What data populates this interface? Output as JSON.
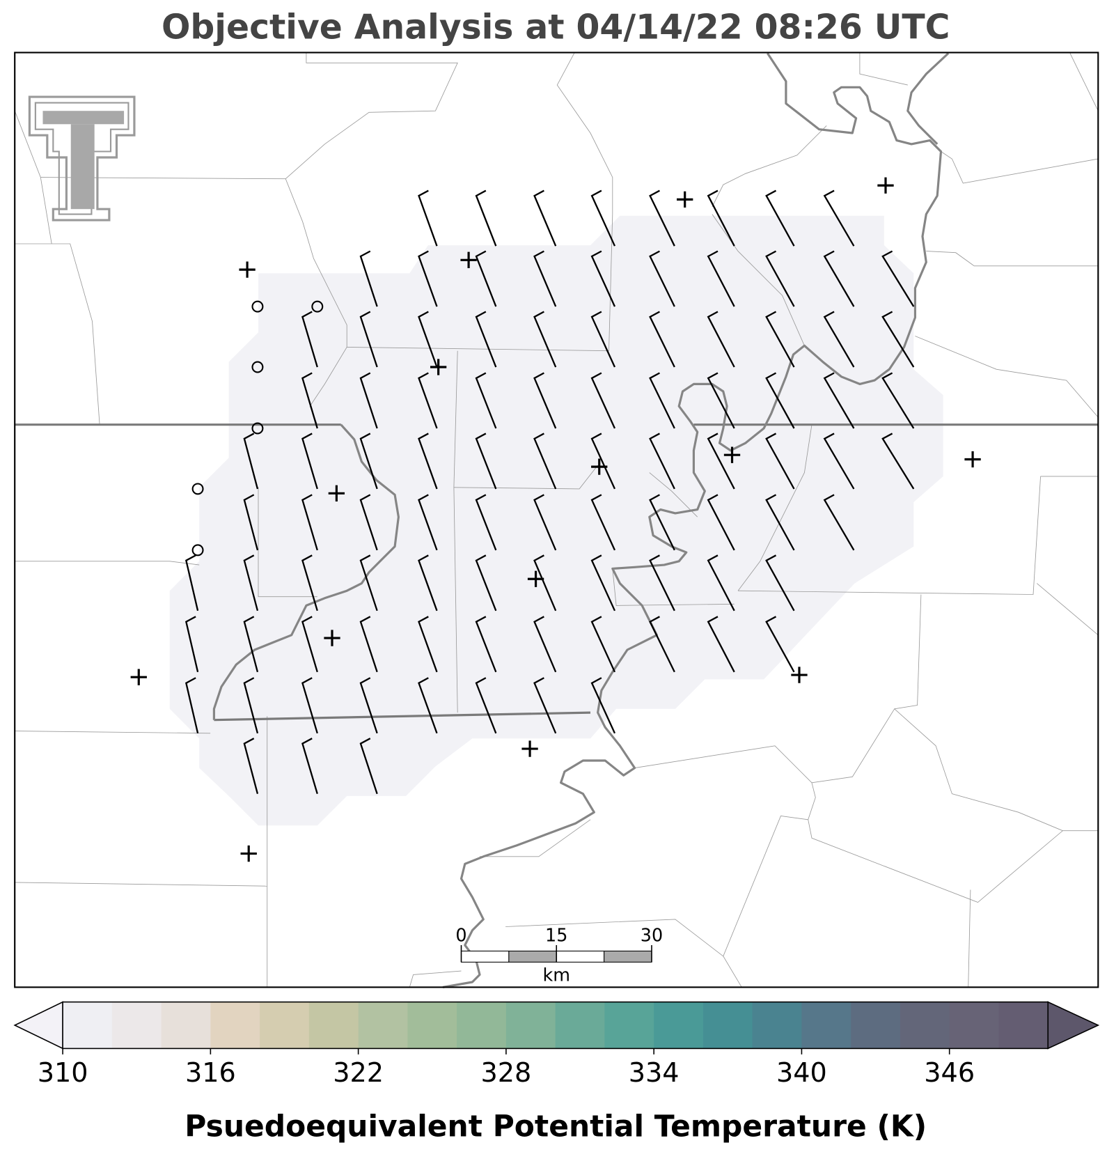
{
  "title": "Objective Analysis at 04/14/22 08:26 UTC",
  "colorbar": {
    "label": "Psuedoequivalent Potential Temperature (K)",
    "range": [
      310,
      350
    ],
    "ticks": [
      310,
      316,
      322,
      328,
      334,
      340,
      346
    ],
    "colors": [
      "#efeff3",
      "#ece8e9",
      "#e7e0da",
      "#e2d4c0",
      "#d5cdb0",
      "#c4c6a4",
      "#b2c2a2",
      "#a2bd9a",
      "#92b898",
      "#80b298",
      "#6aaa98",
      "#58a498",
      "#4a9a97",
      "#458f94",
      "#4a8390",
      "#56778a",
      "#5d6c80",
      "#636679",
      "#676376",
      "#645d72"
    ],
    "extend_colors": [
      "#f3f2f7",
      "#5d576b"
    ]
  },
  "scale_bar": {
    "ticks": [
      0,
      15,
      30
    ],
    "unit": "km"
  }
}
